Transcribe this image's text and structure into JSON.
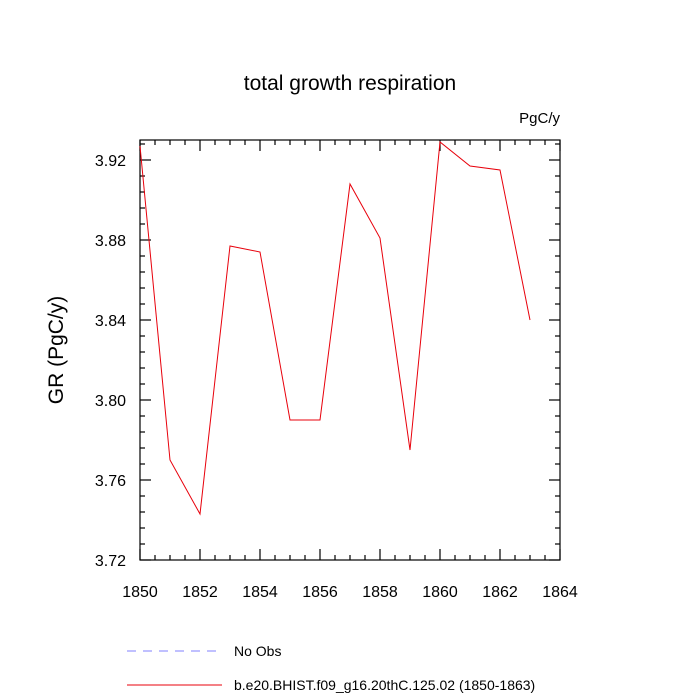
{
  "chart_data": {
    "type": "line",
    "title": "total growth respiration",
    "units_label": "PgC/y",
    "ylabel": "GR  (PgC/y)",
    "xlabel": "",
    "xlim": [
      1850,
      1864
    ],
    "ylim": [
      3.72,
      3.93
    ],
    "x_ticks": [
      1850,
      1852,
      1854,
      1856,
      1858,
      1860,
      1862,
      1864
    ],
    "x_tick_labels": [
      "1850",
      "1852",
      "1854",
      "1856",
      "1858",
      "1860",
      "1862",
      "1864"
    ],
    "y_ticks": [
      3.72,
      3.76,
      3.8,
      3.84,
      3.88,
      3.92
    ],
    "y_tick_labels": [
      "3.72",
      "3.76",
      "3.80",
      "3.84",
      "3.88",
      "3.92"
    ],
    "grid": false,
    "legend_position": "bottom",
    "series": [
      {
        "name": "b.e20.BHIST.f09_g16.20thC.125.02 (1850-1863)",
        "color": "#e8000b",
        "style": "solid",
        "x": [
          1850,
          1851,
          1852,
          1853,
          1854,
          1855,
          1856,
          1857,
          1858,
          1859,
          1860,
          1861,
          1862,
          1863
        ],
        "y": [
          3.927,
          3.77,
          3.743,
          3.877,
          3.874,
          3.79,
          3.79,
          3.908,
          3.881,
          3.775,
          3.929,
          3.917,
          3.915,
          3.84
        ]
      }
    ],
    "legend": [
      {
        "label": "No Obs",
        "color": "#8080ff",
        "style": "dashed"
      },
      {
        "label": "b.e20.BHIST.f09_g16.20thC.125.02 (1850-1863)",
        "color": "#e8000b",
        "style": "solid"
      }
    ]
  }
}
